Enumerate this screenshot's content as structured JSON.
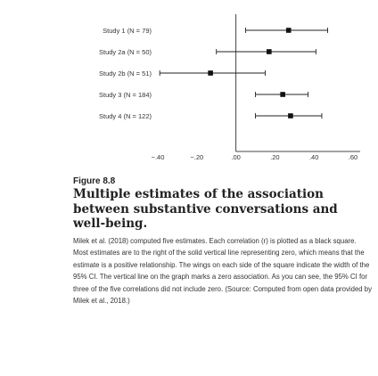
{
  "chart_data": {
    "type": "forest",
    "studies": [
      {
        "label": "Study 1 (N = 79)",
        "estimate": 0.27,
        "ci": [
          0.05,
          0.47
        ]
      },
      {
        "label": "Study 2a (N = 50)",
        "estimate": 0.17,
        "ci": [
          -0.1,
          0.41
        ]
      },
      {
        "label": "Study 2b (N = 51)",
        "estimate": -0.13,
        "ci": [
          -0.39,
          0.15
        ]
      },
      {
        "label": "Study 3 (N = 184)",
        "estimate": 0.24,
        "ci": [
          0.1,
          0.37
        ]
      },
      {
        "label": "Study 4 (N = 122)",
        "estimate": 0.28,
        "ci": [
          0.1,
          0.44
        ]
      }
    ],
    "x_ticks": [
      "−.40",
      "−.20",
      ".00",
      ".20",
      ".40",
      ".60"
    ],
    "x_tick_values": [
      -0.4,
      -0.2,
      0.0,
      0.2,
      0.4,
      0.6
    ],
    "xlim": [
      -0.4,
      0.6
    ],
    "zero_line": 0
  },
  "caption": {
    "figure_number": "Figure 8.8",
    "title": "Multiple estimates of the association between substantive conversations and well-being.",
    "body": "Milek et al. (2018) computed five estimates. Each correlation (r) is plotted as a black square. Most estimates are to the right of the solid vertical line representing zero, which means that the estimate is a positive relationship. The wings on each side of the square indicate the width of the 95% CI. The vertical line on the graph marks a zero association. As you can see, the 95% CI for three of the five correlations did not include zero. (Source: Computed from open data provided by Milek et al., 2018.)"
  }
}
